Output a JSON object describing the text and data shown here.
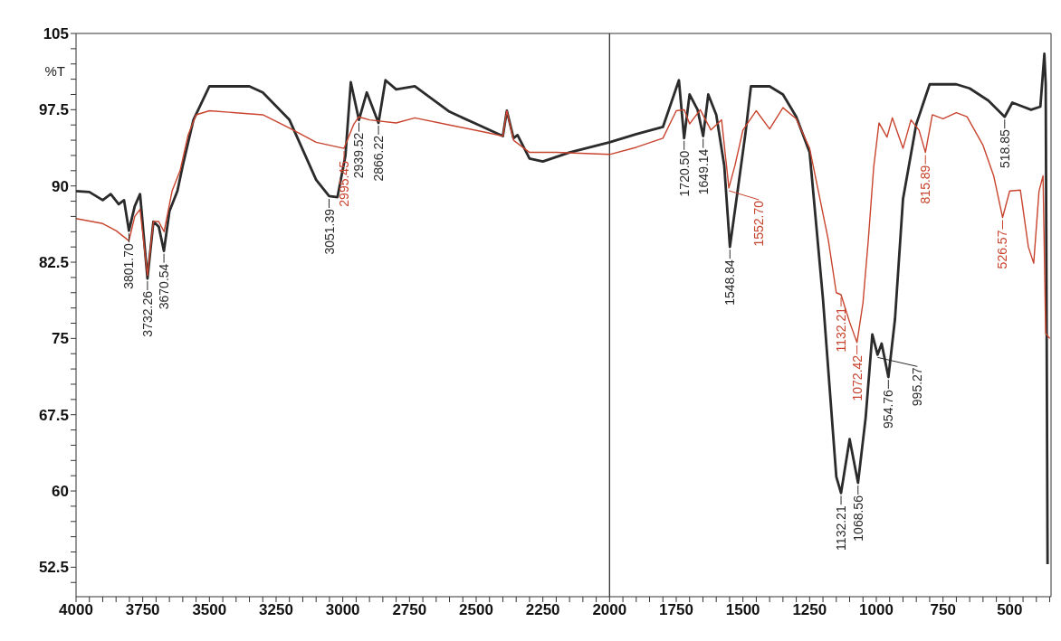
{
  "chart_data": {
    "type": "line",
    "ylabel": "%T",
    "xlim": [
      4000,
      345
    ],
    "ylim": [
      49.6,
      105
    ],
    "xticks": [
      4000,
      {
        "value": 3950,
        "label": null
      },
      {
        "value": 3900,
        "label": null
      },
      {
        "value": 3850,
        "label": null
      },
      {
        "value": 3800,
        "label": null
      },
      3750,
      {
        "value": 3700,
        "label": null
      },
      {
        "value": 3650,
        "label": null
      },
      {
        "value": 3600,
        "label": null
      },
      {
        "value": 3550,
        "label": null
      },
      3500,
      {
        "value": 3450,
        "label": null
      },
      {
        "value": 3400,
        "label": null
      },
      {
        "value": 3350,
        "label": null
      },
      {
        "value": 3300,
        "label": null
      },
      3250,
      {
        "value": 3200,
        "label": null
      },
      {
        "value": 3150,
        "label": null
      },
      {
        "value": 3100,
        "label": null
      },
      {
        "value": 3050,
        "label": null
      },
      3000,
      {
        "value": 2950,
        "label": null
      },
      {
        "value": 2900,
        "label": null
      },
      {
        "value": 2850,
        "label": null
      },
      {
        "value": 2800,
        "label": null
      },
      2750,
      {
        "value": 2700,
        "label": null
      },
      {
        "value": 2650,
        "label": null
      },
      {
        "value": 2600,
        "label": null
      },
      {
        "value": 2550,
        "label": null
      },
      2500,
      {
        "value": 2450,
        "label": null
      },
      {
        "value": 2400,
        "label": null
      },
      {
        "value": 2350,
        "label": null
      },
      {
        "value": 2300,
        "label": null
      },
      2250,
      {
        "value": 2200,
        "label": null
      },
      {
        "value": 2150,
        "label": null
      },
      {
        "value": 2100,
        "label": null
      },
      {
        "value": 2050,
        "label": null
      },
      2000,
      {
        "value": 1950,
        "label": null
      },
      {
        "value": 1900,
        "label": null
      },
      {
        "value": 1850,
        "label": null
      },
      {
        "value": 1800,
        "label": null
      },
      1750,
      {
        "value": 1700,
        "label": null
      },
      {
        "value": 1650,
        "label": null
      },
      {
        "value": 1600,
        "label": null
      },
      {
        "value": 1550,
        "label": null
      },
      1500,
      {
        "value": 1450,
        "label": null
      },
      {
        "value": 1400,
        "label": null
      },
      {
        "value": 1350,
        "label": null
      },
      {
        "value": 1300,
        "label": null
      },
      1250,
      {
        "value": 1200,
        "label": null
      },
      {
        "value": 1150,
        "label": null
      },
      {
        "value": 1100,
        "label": null
      },
      {
        "value": 1050,
        "label": null
      },
      1000,
      {
        "value": 950,
        "label": null
      },
      {
        "value": 900,
        "label": null
      },
      {
        "value": 850,
        "label": null
      },
      {
        "value": 800,
        "label": null
      },
      750,
      {
        "value": 700,
        "label": null
      },
      {
        "value": 650,
        "label": null
      },
      {
        "value": 600,
        "label": null
      },
      {
        "value": 550,
        "label": null
      },
      500,
      {
        "value": 450,
        "label": null
      },
      {
        "value": 400,
        "label": null
      },
      {
        "value": 350,
        "label": null
      }
    ],
    "yticks": [
      {
        "value": 51,
        "label": null
      },
      52.5,
      {
        "value": 54,
        "label": null
      },
      {
        "value": 55.5,
        "label": null
      },
      {
        "value": 57,
        "label": null
      },
      {
        "value": 58.5,
        "label": null
      },
      60,
      {
        "value": 61.5,
        "label": null
      },
      {
        "value": 63,
        "label": null
      },
      {
        "value": 64.5,
        "label": null
      },
      {
        "value": 66,
        "label": null
      },
      67.5,
      {
        "value": 69,
        "label": null
      },
      {
        "value": 70.5,
        "label": null
      },
      {
        "value": 72,
        "label": null
      },
      {
        "value": 73.5,
        "label": null
      },
      75,
      {
        "value": 76.5,
        "label": null
      },
      {
        "value": 78,
        "label": null
      },
      {
        "value": 79.5,
        "label": null
      },
      {
        "value": 81,
        "label": null
      },
      82.5,
      {
        "value": 84,
        "label": null
      },
      {
        "value": 85.5,
        "label": null
      },
      {
        "value": 87,
        "label": null
      },
      {
        "value": 88.5,
        "label": null
      },
      90,
      {
        "value": 91.5,
        "label": null
      },
      {
        "value": 93,
        "label": null
      },
      {
        "value": 94.5,
        "label": null
      },
      {
        "value": 96,
        "label": null
      },
      97.5,
      {
        "value": 99,
        "label": null
      },
      {
        "value": 100.5,
        "label": null
      },
      {
        "value": 102,
        "label": null
      },
      {
        "value": 103.5,
        "label": null
      },
      105
    ],
    "grid": false,
    "legend": false,
    "marker": "none",
    "line_style": "solid",
    "series": [
      {
        "color": "#2b2b2b",
        "x": [
          4000,
          3950,
          3900,
          3870,
          3840,
          3820,
          3801.7,
          3780,
          3760,
          3732.26,
          3710,
          3690,
          3670.54,
          3650,
          3620,
          3600,
          3560,
          3500,
          3350,
          3300,
          3200,
          3100,
          3051.39,
          3020,
          2990,
          2970,
          2939.52,
          2910,
          2866.22,
          2840,
          2800,
          2730,
          2600,
          2500,
          2400,
          2385,
          2360,
          2345,
          2300,
          2250,
          2150,
          2000,
          1900,
          1800,
          1740,
          1720.5,
          1700,
          1670,
          1649.14,
          1630,
          1600,
          1570,
          1548.84,
          1520,
          1490,
          1470,
          1400,
          1350,
          1300,
          1250,
          1200,
          1150,
          1132.21,
          1100,
          1068.56,
          1040,
          1015,
          995.27,
          980,
          954.76,
          930,
          900,
          850,
          800,
          700,
          650,
          580,
          518.85,
          490,
          450,
          420,
          385,
          370,
          365,
          358
        ],
        "values": [
          89.5,
          89.4,
          88.6,
          89.2,
          88.2,
          88.6,
          85.6,
          88,
          89.2,
          80.9,
          86.5,
          86,
          83.6,
          87.5,
          89.5,
          92,
          96.5,
          99.8,
          99.8,
          99.2,
          96.5,
          90.6,
          89,
          88.9,
          93,
          100.2,
          96.5,
          99.2,
          96.2,
          100.4,
          99.5,
          99.8,
          97.3,
          96.1,
          94.9,
          97.4,
          94.7,
          95,
          92.7,
          92.4,
          93.3,
          94.3,
          95.1,
          95.8,
          100.4,
          94.7,
          99,
          97.5,
          94.9,
          99,
          97,
          92,
          84,
          89.5,
          95.3,
          99.8,
          99.8,
          99,
          96.8,
          93.3,
          78.9,
          61.4,
          59.8,
          65.1,
          60.8,
          67.2,
          75.4,
          73.4,
          74.5,
          71.2,
          76.9,
          88.7,
          96.1,
          100,
          100,
          99.6,
          98.4,
          96.8,
          98.2,
          97.8,
          97.5,
          97.8,
          103,
          100,
          52.8
        ]
      },
      {
        "color": "#c8442e",
        "x": [
          4000,
          3900,
          3850,
          3801.7,
          3780,
          3760,
          3732.26,
          3710,
          3690,
          3670,
          3640,
          3610,
          3580,
          3550,
          3500,
          3300,
          3200,
          3100,
          2995.45,
          2960,
          2940,
          2900,
          2800,
          2730,
          2600,
          2450,
          2400,
          2385,
          2360,
          2300,
          2200,
          2000,
          1900,
          1800,
          1750,
          1720,
          1700,
          1660,
          1620,
          1580,
          1552.7,
          1530,
          1500,
          1450,
          1400,
          1350,
          1300,
          1250,
          1180,
          1150,
          1132.21,
          1100,
          1072.42,
          1050,
          1030,
          1010,
          990,
          960,
          940,
          900,
          870,
          840,
          815.89,
          790,
          750,
          700,
          660,
          600,
          560,
          526.57,
          500,
          460,
          430,
          410,
          390,
          375,
          365,
          350
        ],
        "values": [
          86.8,
          86.3,
          85.6,
          84.6,
          87,
          87.7,
          81.2,
          86.5,
          86.5,
          85.5,
          89.5,
          91.5,
          95,
          97,
          97.4,
          97,
          95.7,
          94.3,
          93.7,
          96,
          96.8,
          96.5,
          96.2,
          96.7,
          96,
          95.2,
          94.9,
          97.4,
          94.5,
          93.3,
          93.3,
          93.1,
          93.8,
          94.7,
          97.4,
          97.5,
          96.1,
          97.5,
          95.5,
          96.5,
          89.8,
          92,
          95.5,
          97.4,
          95.6,
          97.7,
          96.6,
          93.7,
          84.7,
          79.5,
          79.3,
          76.6,
          74.6,
          78.5,
          84.7,
          91.8,
          96.2,
          94.8,
          96.7,
          93.7,
          96.5,
          95.5,
          93.3,
          97,
          96.6,
          97.2,
          96.8,
          94,
          91,
          86.9,
          89.5,
          89.6,
          84,
          82.4,
          89.5,
          91,
          75.5,
          75
        ]
      }
    ],
    "ref_lines": [
      {
        "axis": "x",
        "value": 2000,
        "color": "#333333"
      }
    ],
    "annotations": [
      {
        "text": "3801.70",
        "x": 3801.7,
        "y": 85.6
      },
      {
        "text": "3732.26",
        "x": 3732.26,
        "y": 80.9
      },
      {
        "text": "3670.54",
        "x": 3670.54,
        "y": 83.6
      },
      {
        "text": "3051.39",
        "x": 3051.39,
        "y": 89
      },
      {
        "text": "2995.45",
        "x": 2995.45,
        "y": 93.7
      },
      {
        "text": "2939.52",
        "x": 2939.52,
        "y": 96.5
      },
      {
        "text": "2866.22",
        "x": 2866.22,
        "y": 96.2
      },
      {
        "text": "1720.50",
        "x": 1720.5,
        "y": 94.7
      },
      {
        "text": "1649.14",
        "x": 1649.14,
        "y": 94.9
      },
      {
        "text": "1548.84",
        "x": 1548.84,
        "y": 84
      },
      {
        "text": "1552.70",
        "x": 1552.7,
        "y": 89.8
      },
      {
        "text": "1132.21",
        "x": 1132.21,
        "y": 79.3
      },
      {
        "text": "1072.42",
        "x": 1072.42,
        "y": 74.6
      },
      {
        "text": "1132.21",
        "x": 1132.21,
        "y": 59.8
      },
      {
        "text": "1068.56",
        "x": 1068.56,
        "y": 60.8
      },
      {
        "text": "995.27",
        "x": 995.27,
        "y": 73.4
      },
      {
        "text": "954.76",
        "x": 954.76,
        "y": 71.2
      },
      {
        "text": "815.89",
        "x": 815.89,
        "y": 93.3
      },
      {
        "text": "526.57",
        "x": 526.57,
        "y": 86.9
      },
      {
        "text": "518.85",
        "x": 518.85,
        "y": 96.8
      }
    ]
  }
}
